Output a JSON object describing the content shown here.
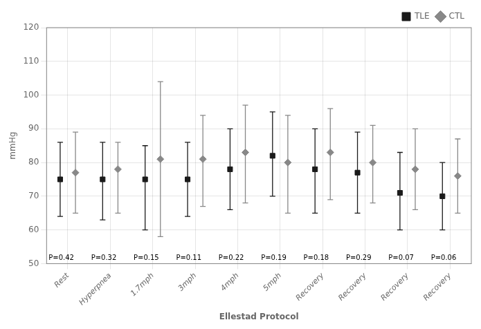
{
  "chart_data": {
    "type": "scatter",
    "categories": [
      "Rest",
      "Hyperpnea",
      "1.7mph",
      "3mph",
      "4mph",
      "5mph",
      "Recovery",
      "Recovery",
      "Recovery",
      "Recovery"
    ],
    "annotations": [
      "P=0.42",
      "P=0.32",
      "P=0.15",
      "P=0.11",
      "P=0.22",
      "P=0.19",
      "P=0.18",
      "P=0.29",
      "P=0.07",
      "P=0.06"
    ],
    "series": [
      {
        "name": "TLE",
        "color": "#1a1a1a",
        "marker": "square",
        "values": [
          75,
          75,
          75,
          75,
          78,
          82,
          78,
          77,
          71,
          70
        ],
        "upper": [
          86,
          86,
          85,
          86,
          90,
          95,
          90,
          89,
          83,
          80
        ],
        "lower": [
          64,
          63,
          60,
          64,
          66,
          70,
          65,
          65,
          60,
          60
        ]
      },
      {
        "name": "CTL",
        "color": "#888888",
        "marker": "diamond",
        "values": [
          77,
          78,
          81,
          81,
          83,
          80,
          83,
          80,
          78,
          76
        ],
        "upper": [
          89,
          86,
          104,
          94,
          97,
          94,
          96,
          91,
          90,
          87
        ],
        "lower": [
          65,
          65,
          58,
          67,
          68,
          65,
          69,
          68,
          66,
          65
        ]
      }
    ],
    "xlabel": "Ellestad Protocol",
    "ylabel": "mmHg",
    "ylim": [
      50,
      120
    ],
    "yticks": [
      50,
      60,
      70,
      80,
      90,
      100,
      110,
      120
    ],
    "grid": true,
    "legend": "upper right"
  }
}
